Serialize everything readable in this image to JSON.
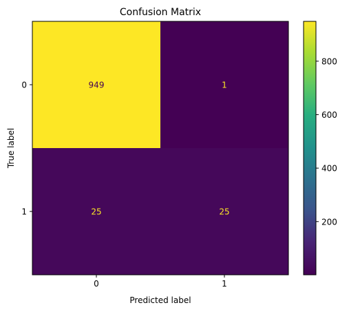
{
  "chart_data": {
    "type": "heatmap",
    "title": "Confusion Matrix",
    "xlabel": "Predicted label",
    "ylabel": "True label",
    "x_categories": [
      "0",
      "1"
    ],
    "y_categories": [
      "0",
      "1"
    ],
    "matrix": [
      [
        949,
        1
      ],
      [
        25,
        25
      ]
    ],
    "cell_labels": [
      [
        "949",
        "1"
      ],
      [
        "25",
        "25"
      ]
    ],
    "colormap": "viridis",
    "vmin": 1,
    "vmax": 949,
    "colorbar_ticks": [
      200,
      400,
      600,
      800
    ],
    "colorbar_tick_labels": [
      "200",
      "400",
      "600",
      "800"
    ],
    "label_colors": {
      "on_dark": "#fde725",
      "on_light": "#440154"
    }
  }
}
